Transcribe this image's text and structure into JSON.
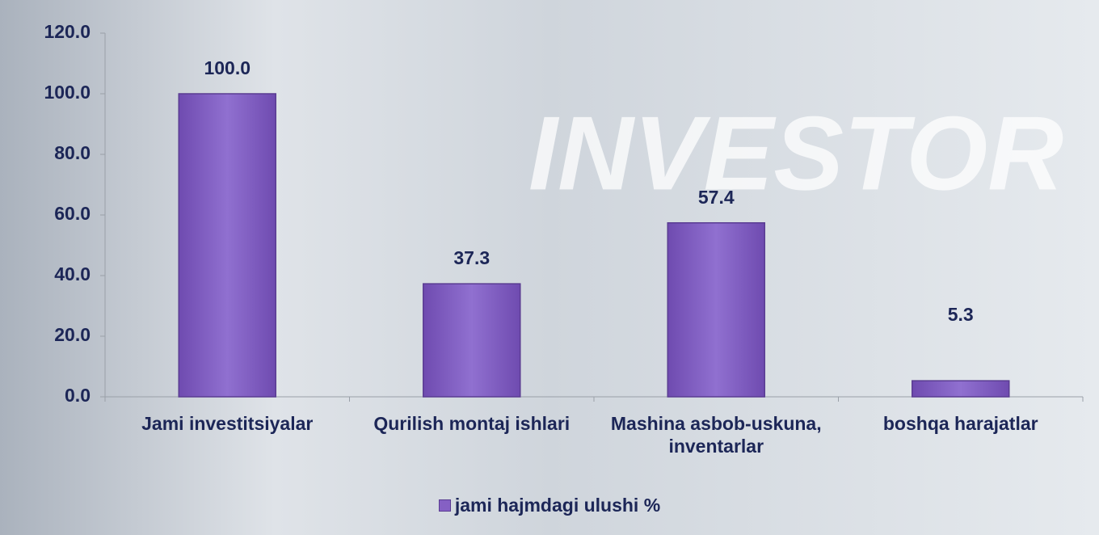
{
  "chart_data": {
    "type": "bar",
    "background_text": "INVESTOR",
    "categories": [
      "Jami investitsiyalar",
      "Qurilish montaj ishlari",
      "Mashina asbob-uskuna, inventarlar",
      "boshqa harajatlar"
    ],
    "series": [
      {
        "name": "jami hajmdagi ulushi %",
        "color": "#8560c4",
        "values": [
          100,
          37.3,
          57.4,
          5.3
        ],
        "value_labels": [
          "100.0",
          "37.3",
          "57.4",
          "5.3"
        ]
      }
    ],
    "ylim": [
      0,
      120
    ],
    "yticks": [
      {
        "value": 0,
        "label": "0.0"
      },
      {
        "value": 20,
        "label": "20.0"
      },
      {
        "value": 40,
        "label": "40.0"
      },
      {
        "value": 60,
        "label": "60.0"
      },
      {
        "value": 80,
        "label": "80.0"
      },
      {
        "value": 100,
        "label": "100.0"
      },
      {
        "value": 120,
        "label": "120.0"
      }
    ],
    "legend": "bottom"
  }
}
